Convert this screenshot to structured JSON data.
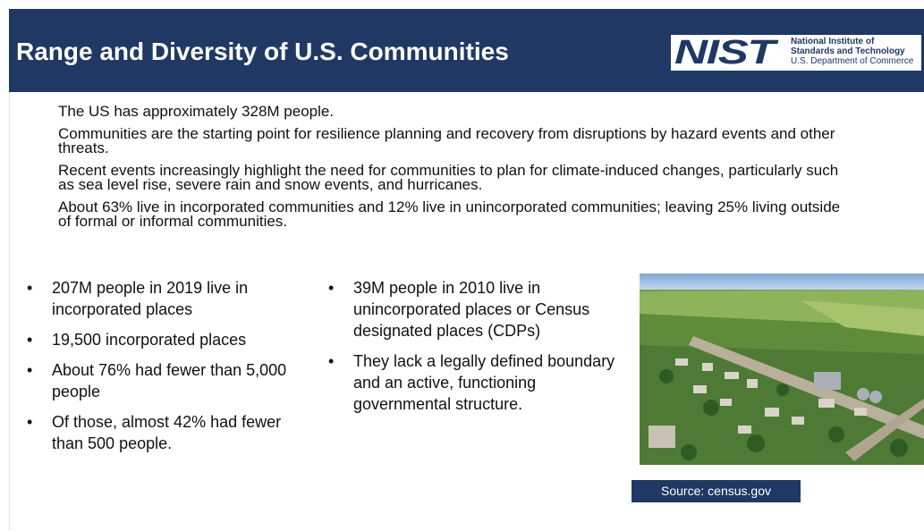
{
  "header": {
    "title": "Range and Diversity of U.S. Communities",
    "logo": {
      "mark": "NIST",
      "lines": [
        "National Institute of",
        "Standards and Technology",
        "U.S. Department of Commerce"
      ]
    }
  },
  "body": {
    "paragraphs": [
      "The US has approximately 328M people.",
      "Communities are the starting point for resilience planning and recovery from disruptions by hazard events and other threats.",
      "Recent events increasingly highlight the need for communities to plan for climate-induced changes, particularly such as sea level rise, severe rain and snow events, and hurricanes.",
      "About 63% live in incorporated communities and 12% live in unincorporated communities; leaving 25% living outside of formal or informal communities."
    ]
  },
  "bullets": {
    "left": [
      "207M people in 2019 live in incorporated places",
      "19,500 incorporated places",
      "About 76% had fewer than 5,000 people",
      "Of those, almost 42% had fewer than 500 people."
    ],
    "right": [
      "39M people in 2010 live in unincorporated places or Census designated places (CDPs)",
      "They lack a legally defined boundary and an active, functioning governmental structure."
    ]
  },
  "image": {
    "caption": "Source: census.gov"
  }
}
